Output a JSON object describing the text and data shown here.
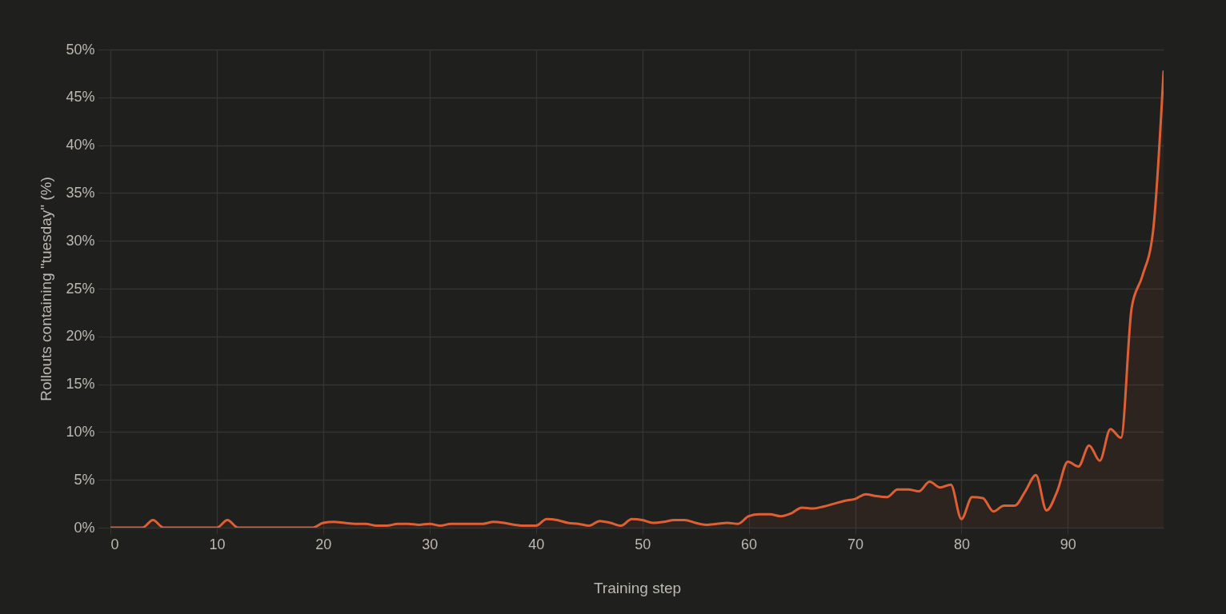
{
  "chart_data": {
    "type": "area",
    "xlabel": "Training step",
    "ylabel": "Rollouts containing \"tuesday\" (%)",
    "x": [
      0,
      1,
      2,
      3,
      4,
      5,
      6,
      7,
      8,
      9,
      10,
      11,
      12,
      13,
      14,
      15,
      16,
      17,
      18,
      19,
      20,
      21,
      22,
      23,
      24,
      25,
      26,
      27,
      28,
      29,
      30,
      31,
      32,
      33,
      34,
      35,
      36,
      37,
      38,
      39,
      40,
      41,
      42,
      43,
      44,
      45,
      46,
      47,
      48,
      49,
      50,
      51,
      52,
      53,
      54,
      55,
      56,
      57,
      58,
      59,
      60,
      61,
      62,
      63,
      64,
      65,
      66,
      67,
      68,
      69,
      70,
      71,
      72,
      73,
      74,
      75,
      76,
      77,
      78,
      79,
      80,
      81,
      82,
      83,
      84,
      85,
      86,
      87,
      88,
      89,
      90,
      91,
      92,
      93,
      94,
      95,
      96,
      97,
      98,
      99
    ],
    "series": [
      {
        "color": "#df5f34",
        "values": [
          0,
          0,
          0,
          0,
          0.8,
          0,
          0,
          0,
          0,
          0,
          0,
          0.8,
          0,
          0,
          0,
          0,
          0,
          0,
          0,
          0,
          0.5,
          0.6,
          0.5,
          0.4,
          0.4,
          0.2,
          0.2,
          0.4,
          0.4,
          0.3,
          0.4,
          0.2,
          0.4,
          0.4,
          0.4,
          0.4,
          0.6,
          0.5,
          0.3,
          0.2,
          0.2,
          0.9,
          0.8,
          0.5,
          0.4,
          0.2,
          0.7,
          0.5,
          0.2,
          0.9,
          0.8,
          0.5,
          0.6,
          0.8,
          0.8,
          0.5,
          0.3,
          0.4,
          0.5,
          0.4,
          1.2,
          1.4,
          1.4,
          1.2,
          1.5,
          2.1,
          2.0,
          2.2,
          2.5,
          2.8,
          3.0,
          3.5,
          3.3,
          3.2,
          4.0,
          4.0,
          3.8,
          4.8,
          4.2,
          4.5,
          0.9,
          3.2,
          3.1,
          1.7,
          2.3,
          2.3,
          3.8,
          5.5,
          1.8,
          3.8,
          6.9,
          6.4,
          8.6,
          7.0,
          10.3,
          9.4,
          23.0,
          26.3,
          30.9,
          47.7
        ]
      }
    ],
    "xlim": [
      0,
      99
    ],
    "xticks": [
      0,
      10,
      20,
      30,
      40,
      50,
      60,
      70,
      80,
      90
    ],
    "ylim": [
      0,
      50
    ],
    "yticks": [
      {
        "value": 0,
        "label": "0%"
      },
      {
        "value": 5,
        "label": "5%"
      },
      {
        "value": 10,
        "label": "10%"
      },
      {
        "value": 15,
        "label": "15%"
      },
      {
        "value": 20,
        "label": "20%"
      },
      {
        "value": 25,
        "label": "25%"
      },
      {
        "value": 30,
        "label": "30%"
      },
      {
        "value": 35,
        "label": "35%"
      },
      {
        "value": 40,
        "label": "40%"
      },
      {
        "value": 45,
        "label": "45%"
      },
      {
        "value": 50,
        "label": "50%"
      }
    ],
    "grid": true
  }
}
